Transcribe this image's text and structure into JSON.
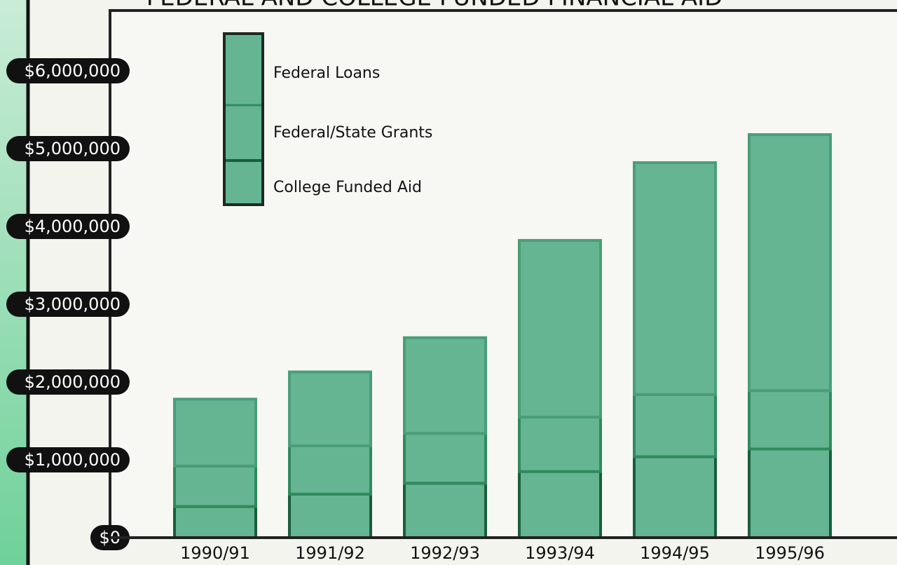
{
  "chart_data": {
    "type": "stacked-bar",
    "title": "FEDERAL AND COLLEGE FUNDED FINANCIAL AID",
    "categories": [
      "1990/91",
      "1991/92",
      "1992/93",
      "1993/94",
      "1994/95",
      "1995/96"
    ],
    "series": [
      {
        "name": "College Funded Aid",
        "color": "#66b592",
        "values": [
          400000,
          560000,
          700000,
          850000,
          1040000,
          1140000
        ]
      },
      {
        "name": "Federal/State Grants",
        "color": "#66b592",
        "values": [
          520000,
          620000,
          640000,
          700000,
          800000,
          750000
        ]
      },
      {
        "name": "Federal Loans",
        "color": "#66b592",
        "values": [
          860000,
          950000,
          1230000,
          2270000,
          2980000,
          3290000
        ]
      }
    ],
    "ylim": [
      0,
      6775000
    ],
    "yticks": [
      {
        "value": 0,
        "label": "$0"
      },
      {
        "value": 1000000,
        "label": "$1,000,000"
      },
      {
        "value": 2000000,
        "label": "$2,000,000"
      },
      {
        "value": 3000000,
        "label": "$3,000,000"
      },
      {
        "value": 4000000,
        "label": "$4,000,000"
      },
      {
        "value": 5000000,
        "label": "$5,000,000"
      },
      {
        "value": 6000000,
        "label": "$6,000,000"
      }
    ]
  }
}
